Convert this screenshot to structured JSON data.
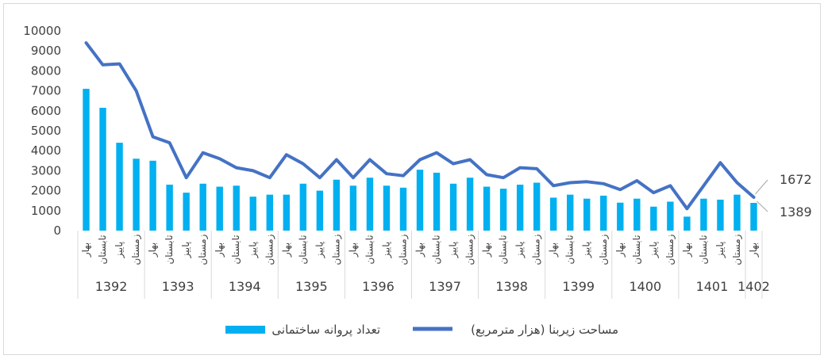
{
  "chart_data": {
    "type": "bar",
    "title": "",
    "xlabel": "",
    "ylabel": "",
    "ylim": [
      0,
      10000
    ],
    "yticks": [
      0,
      1000,
      2000,
      3000,
      4000,
      5000,
      6000,
      7000,
      8000,
      9000,
      10000
    ],
    "grid": false,
    "legend_position": "bottom",
    "quarter_labels": [
      "بهار",
      "تابستان",
      "پاییز",
      "زمستان"
    ],
    "years": [
      {
        "label": "1392",
        "quarters": 4
      },
      {
        "label": "1393",
        "quarters": 4
      },
      {
        "label": "1394",
        "quarters": 4
      },
      {
        "label": "1395",
        "quarters": 4
      },
      {
        "label": "1396",
        "quarters": 4
      },
      {
        "label": "1397",
        "quarters": 4
      },
      {
        "label": "1398",
        "quarters": 4
      },
      {
        "label": "1399",
        "quarters": 4
      },
      {
        "label": "1400",
        "quarters": 4
      },
      {
        "label": "1401",
        "quarters": 4
      },
      {
        "label": "1402",
        "quarters": 1
      }
    ],
    "series": [
      {
        "name": "تعداد پروانه  ساختمانی",
        "type": "bar",
        "color": "#00b0f0",
        "values": [
          7100,
          6150,
          4400,
          3600,
          3500,
          2300,
          1900,
          2350,
          2200,
          2250,
          1700,
          1800,
          1800,
          2350,
          2000,
          2550,
          2250,
          2650,
          2250,
          2150,
          3050,
          2900,
          2350,
          2650,
          2200,
          2100,
          2300,
          2400,
          1650,
          1800,
          1600,
          1750,
          1400,
          1600,
          1200,
          1450,
          700,
          1600,
          1550,
          1800,
          1389
        ]
      },
      {
        "name": "مساحت زیربنا (هزار مترمربع)",
        "type": "line",
        "color": "#4472c4",
        "values": [
          9400,
          8300,
          8350,
          7000,
          4700,
          4400,
          2650,
          3900,
          3600,
          3150,
          3000,
          2650,
          3800,
          3350,
          2650,
          3550,
          2650,
          3550,
          2850,
          2750,
          3550,
          3900,
          3350,
          3550,
          2800,
          2650,
          3150,
          3100,
          2250,
          2400,
          2450,
          2350,
          2050,
          2500,
          1900,
          2250,
          1100,
          2250,
          3400,
          2400,
          1672
        ]
      }
    ],
    "annotations": [
      {
        "text": "1672",
        "series": 1,
        "point": 40
      },
      {
        "text": "1389",
        "series": 0,
        "point": 40
      }
    ]
  }
}
